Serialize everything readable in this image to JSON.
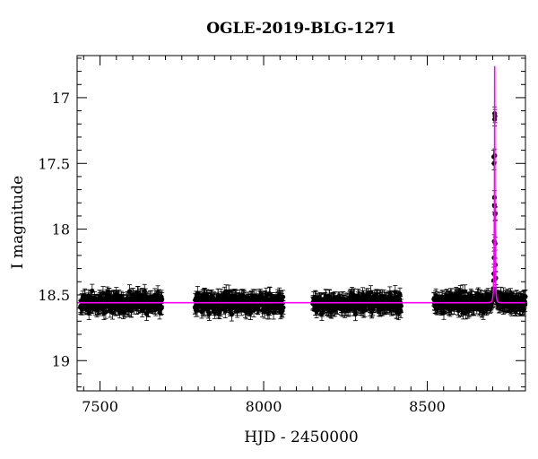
{
  "chart_data": {
    "type": "scatter",
    "title": "OGLE-2019-BLG-1271",
    "xlabel": "HJD - 2450000",
    "ylabel": "I magnitude",
    "xlim": [
      7430,
      8800
    ],
    "ylim": [
      19.23,
      16.68
    ],
    "y_inverted": true,
    "x_ticks": [
      7500,
      8000,
      8500
    ],
    "y_ticks": [
      17,
      17.5,
      18,
      18.5,
      19
    ],
    "x_tick_labels": [
      "7500",
      "8000",
      "8500"
    ],
    "y_tick_labels": [
      "17",
      "17.5",
      "18",
      "18.5",
      "19"
    ],
    "grid": false,
    "legend": "none",
    "baseline_mag": 18.56,
    "seasons": [
      [
        7440,
        7690
      ],
      [
        7790,
        8060
      ],
      [
        8150,
        8420
      ],
      [
        8520,
        8800
      ]
    ],
    "scatter_mag": 0.09,
    "error_bar_mag": 0.05,
    "event": {
      "peak_hjd": 8706,
      "peak_mag": 17.12,
      "visible_points": [
        [
          8703,
          17.45
        ],
        [
          8704,
          17.5
        ],
        [
          8705,
          17.82
        ],
        [
          8706,
          17.12
        ],
        [
          8707,
          17.14
        ],
        [
          8708,
          17.88
        ]
      ]
    },
    "series": [
      {
        "kind": "points",
        "color": "#000000"
      },
      {
        "kind": "model",
        "color": "#ff00ff"
      }
    ]
  }
}
